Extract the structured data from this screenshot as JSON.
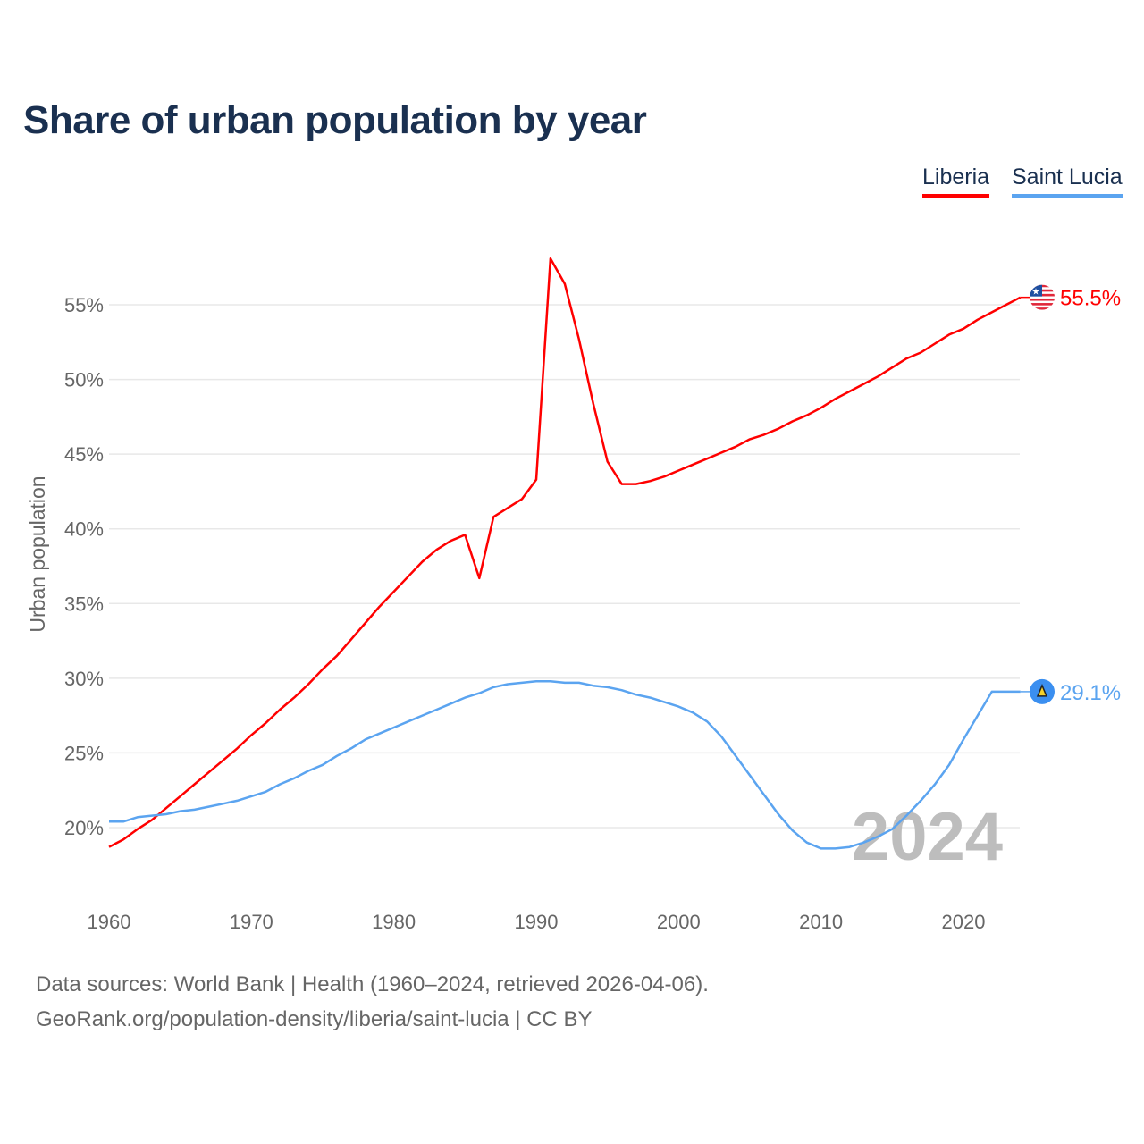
{
  "chart_data": {
    "type": "line",
    "title": "Share of urban population by year",
    "ylabel": "Urban population",
    "xlabel": "",
    "ylim": [
      16,
      60
    ],
    "xlim": [
      1960,
      2024
    ],
    "yticks": [
      20,
      25,
      30,
      35,
      40,
      45,
      50,
      55
    ],
    "ytick_labels": [
      "20%",
      "25%",
      "30%",
      "35%",
      "40%",
      "45%",
      "50%",
      "55%"
    ],
    "xticks": [
      1960,
      1970,
      1980,
      1990,
      2000,
      2010,
      2020
    ],
    "xtick_labels": [
      "1960",
      "1970",
      "1980",
      "1990",
      "2000",
      "2010",
      "2020"
    ],
    "grid": true,
    "legend_placement": "top-right",
    "watermark_year": "2024",
    "x_start": 1960,
    "series": [
      {
        "name": "Liberia",
        "color": "#ff0000",
        "end_label": "55.5%",
        "icon": "liberia-flag-icon",
        "values": [
          18.7,
          19.2,
          19.9,
          20.5,
          21.3,
          22.1,
          22.9,
          23.7,
          24.5,
          25.3,
          26.2,
          27.0,
          27.9,
          28.7,
          29.6,
          30.6,
          31.5,
          32.6,
          33.7,
          34.8,
          35.8,
          36.8,
          37.8,
          38.6,
          39.2,
          39.6,
          36.7,
          40.8,
          41.4,
          42.0,
          43.3,
          58.1,
          56.4,
          52.7,
          48.4,
          44.5,
          43.0,
          43.0,
          43.2,
          43.5,
          43.9,
          44.3,
          44.7,
          45.1,
          45.5,
          46.0,
          46.3,
          46.7,
          47.2,
          47.6,
          48.1,
          48.7,
          49.2,
          49.7,
          50.2,
          50.8,
          51.4,
          51.8,
          52.4,
          53.0,
          53.4,
          54.0,
          54.5,
          55.0,
          55.5
        ]
      },
      {
        "name": "Saint Lucia",
        "color": "#5ba4f0",
        "end_label": "29.1%",
        "icon": "saint-lucia-flag-icon",
        "values": [
          20.4,
          20.4,
          20.7,
          20.8,
          20.9,
          21.1,
          21.2,
          21.4,
          21.6,
          21.8,
          22.1,
          22.4,
          22.9,
          23.3,
          23.8,
          24.2,
          24.8,
          25.3,
          25.9,
          26.3,
          26.7,
          27.1,
          27.5,
          27.9,
          28.3,
          28.7,
          29.0,
          29.4,
          29.6,
          29.7,
          29.8,
          29.8,
          29.7,
          29.7,
          29.5,
          29.4,
          29.2,
          28.9,
          28.7,
          28.4,
          28.1,
          27.7,
          27.1,
          26.1,
          24.8,
          23.5,
          22.2,
          20.9,
          19.8,
          19.0,
          18.6,
          18.6,
          18.7,
          19.0,
          19.4,
          19.9,
          20.8,
          21.8,
          22.9,
          24.2,
          25.9,
          27.5,
          29.1,
          29.1,
          29.1
        ]
      }
    ]
  },
  "legend": [
    "Liberia",
    "Saint Lucia"
  ],
  "footer": {
    "line1": "Data sources: World Bank | Health (1960–2024, retrieved 2026-04-06).",
    "line2": "GeoRank.org/population-density/liberia/saint-lucia | CC BY"
  }
}
